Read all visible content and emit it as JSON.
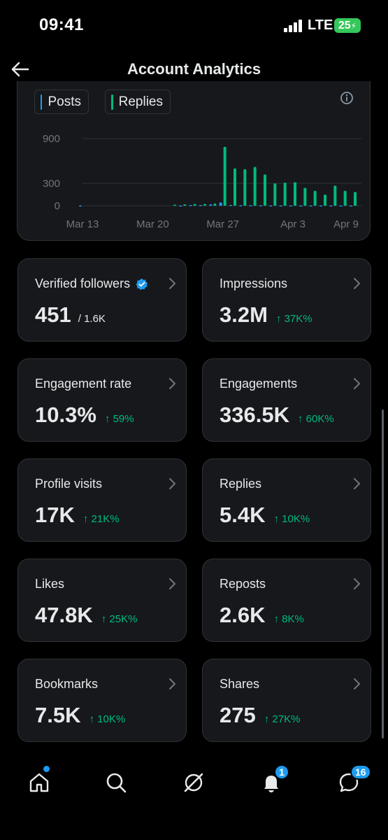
{
  "status_bar": {
    "time": "09:41",
    "network": "LTE",
    "battery": "25"
  },
  "header": {
    "title": "Account Analytics",
    "back_icon": "arrow-left-icon"
  },
  "chart_data": {
    "type": "bar",
    "title": "",
    "legend": [
      "Posts",
      "Replies"
    ],
    "legend_placement": "top-left",
    "x_ticks": [
      "Mar 13",
      "Mar 20",
      "Mar 27",
      "Apr 3",
      "Apr 9"
    ],
    "y_ticks": [
      "900",
      "300",
      "0"
    ],
    "ylim": [
      0,
      900
    ],
    "grid": true,
    "colors": {
      "Posts": "#1d9bf0",
      "Replies": "#00ba7c"
    },
    "categories": [
      "Mar 13",
      "Mar 14",
      "Mar 15",
      "Mar 16",
      "Mar 17",
      "Mar 18",
      "Mar 19",
      "Mar 20",
      "Mar 21",
      "Mar 22",
      "Mar 23",
      "Mar 24",
      "Mar 25",
      "Mar 26",
      "Mar 27",
      "Mar 28",
      "Mar 29",
      "Mar 30",
      "Mar 31",
      "Apr 1",
      "Apr 2",
      "Apr 3",
      "Apr 4",
      "Apr 5",
      "Apr 6",
      "Apr 7",
      "Apr 8",
      "Apr 9"
    ],
    "series": [
      {
        "name": "Posts",
        "values": [
          5,
          0,
          0,
          0,
          0,
          0,
          0,
          0,
          0,
          0,
          5,
          10,
          10,
          20,
          45,
          12,
          8,
          8,
          8,
          5,
          5,
          5,
          5,
          5,
          5,
          5,
          5,
          5
        ]
      },
      {
        "name": "Replies",
        "values": [
          0,
          0,
          0,
          0,
          0,
          0,
          0,
          0,
          0,
          15,
          20,
          25,
          25,
          30,
          790,
          500,
          490,
          520,
          420,
          300,
          310,
          315,
          240,
          200,
          150,
          270,
          200,
          185
        ]
      }
    ]
  },
  "metrics": [
    {
      "label": "Verified followers",
      "value": "451",
      "sub": "/ 1.6K",
      "delta": "",
      "verified_icon": "verified-badge-icon"
    },
    {
      "label": "Impressions",
      "value": "3.2M",
      "sub": "",
      "delta": "↑ 37K%"
    },
    {
      "label": "Engagement rate",
      "value": "10.3%",
      "sub": "",
      "delta": "↑ 59%"
    },
    {
      "label": "Engagements",
      "value": "336.5K",
      "sub": "",
      "delta": "↑ 60K%"
    },
    {
      "label": "Profile visits",
      "value": "17K",
      "sub": "",
      "delta": "↑ 21K%"
    },
    {
      "label": "Replies",
      "value": "5.4K",
      "sub": "",
      "delta": "↑ 10K%"
    },
    {
      "label": "Likes",
      "value": "47.8K",
      "sub": "",
      "delta": "↑ 25K%"
    },
    {
      "label": "Reposts",
      "value": "2.6K",
      "sub": "",
      "delta": "↑ 8K%"
    },
    {
      "label": "Bookmarks",
      "value": "7.5K",
      "sub": "",
      "delta": "↑ 10K%"
    },
    {
      "label": "Shares",
      "value": "275",
      "sub": "",
      "delta": "↑ 27K%"
    }
  ],
  "tab_bar": {
    "items": [
      {
        "icon": "home-icon",
        "badge": ""
      },
      {
        "icon": "search-icon",
        "badge": ""
      },
      {
        "icon": "grok-icon",
        "badge": ""
      },
      {
        "icon": "bell-icon",
        "badge": "1"
      },
      {
        "icon": "messages-icon",
        "badge": "16"
      }
    ]
  },
  "accent_color": "#1d9bf0",
  "positive_color": "#00ba7c"
}
